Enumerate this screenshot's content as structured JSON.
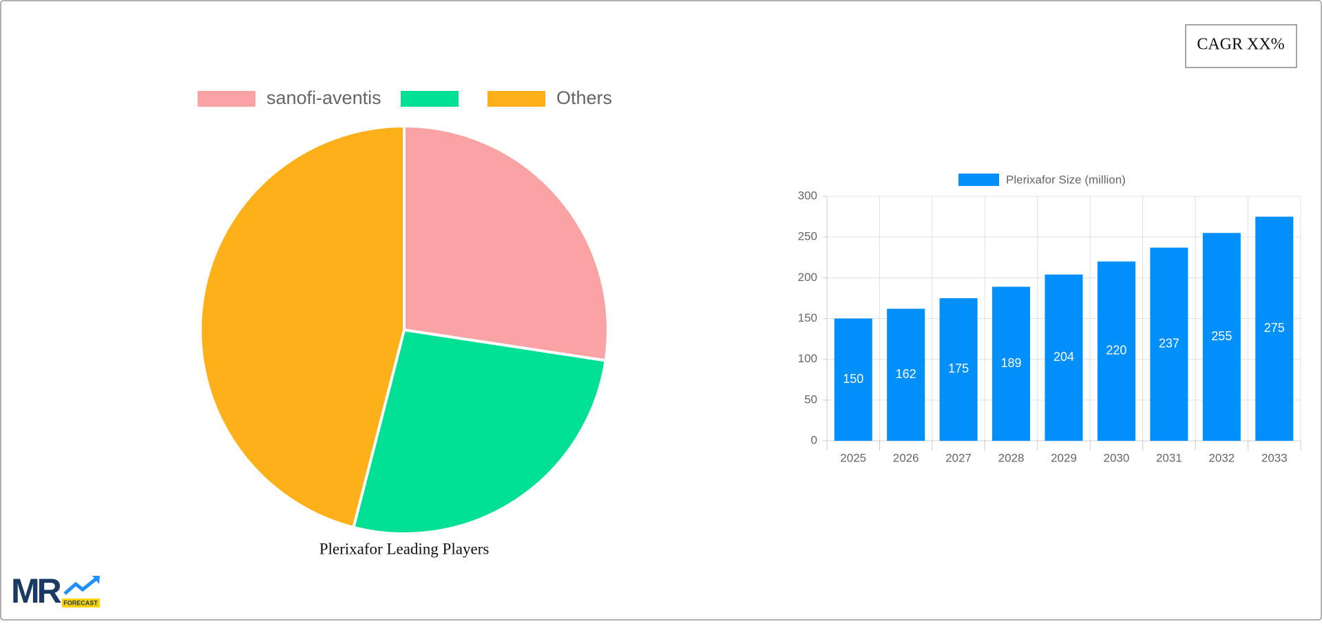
{
  "cagr": "CAGR XX%",
  "logo": {
    "text": "MR",
    "tag": "FORECAST"
  },
  "chart_data": [
    {
      "type": "pie",
      "title": "Plerixafor Leading Players",
      "categories": [
        "sanofi-aventis",
        null,
        "Others"
      ],
      "values": [
        27.4,
        26.6,
        46
      ],
      "colors": [
        "#f9a3a4",
        "#00e094",
        "#feb019"
      ],
      "legend": "top"
    },
    {
      "type": "bar",
      "categories": [
        "2025",
        "2026",
        "2027",
        "2028",
        "2029",
        "2030",
        "2031",
        "2032",
        "2033"
      ],
      "series": [
        {
          "name": "Plerixafor Size (million)",
          "color": "#008ffb",
          "values": [
            150,
            162,
            175,
            189,
            204,
            220,
            237,
            255,
            275
          ]
        }
      ],
      "ylim": [
        0,
        300
      ],
      "yticks": [
        0,
        50,
        100,
        150,
        200,
        250,
        300
      ],
      "grid": true,
      "legend": "top"
    }
  ]
}
